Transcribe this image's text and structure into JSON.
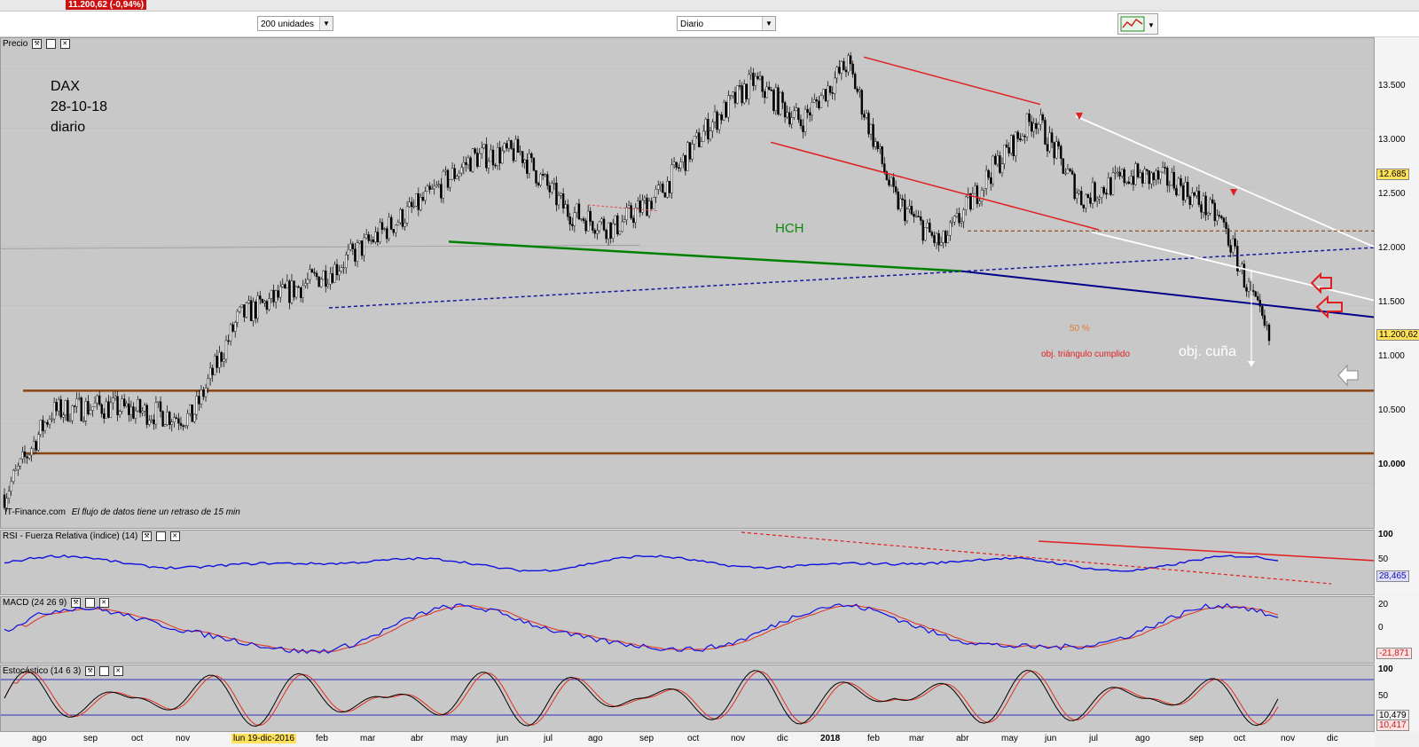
{
  "header": {
    "quote_text": "11.200,62 (-0,94%)",
    "units_select": "200 unidades",
    "period_select": "Diario"
  },
  "price_panel": {
    "title": "Precio",
    "annotation_lines": [
      "DAX",
      "28-10-18",
      "diario"
    ],
    "labels": {
      "hch": "HCH",
      "fifty_pct": "50 %",
      "obj_triangle": "obj. triángulo cumplido",
      "obj_wedge": "obj. cuña"
    },
    "source_text": "IT-Finance.com",
    "delay_text": "El flujo de datos tiene un retraso de 15 min",
    "y_ticks": [
      "13.500",
      "13.000",
      "12.500",
      "12.000",
      "11.500",
      "11.000",
      "10.500",
      "10.000"
    ],
    "price_tags": [
      "12.685",
      "11.200,62"
    ]
  },
  "rsi_panel": {
    "title": "RSI - Fuerza Relativa (índice) (14)",
    "y_ticks": [
      "100",
      "50"
    ],
    "value_tag": "28,465"
  },
  "macd_panel": {
    "title": "MACD (24 26 9)",
    "y_ticks": [
      "20",
      "0"
    ],
    "value_tag": "-21,871"
  },
  "stoch_panel": {
    "title": "Estocástico (14 6 3)",
    "y_ticks": [
      "100",
      "50"
    ],
    "value_tags": [
      "10,479",
      "10,417"
    ]
  },
  "x_axis": {
    "labels": [
      "ago",
      "sep",
      "oct",
      "nov",
      "lun 19-dic-2016",
      "feb",
      "mar",
      "abr",
      "may",
      "jun",
      "jul",
      "ago",
      "sep",
      "oct",
      "nov",
      "dic",
      "2018",
      "feb",
      "mar",
      "abr",
      "may",
      "jun",
      "jul",
      "ago",
      "sep",
      "oct",
      "nov",
      "dic"
    ]
  },
  "chart_data": {
    "type": "line",
    "title": "DAX 28-10-18 diario",
    "ylim": [
      9800,
      13700
    ],
    "y_ticks": [
      13500,
      13000,
      12500,
      12000,
      11500,
      11000,
      10500,
      10000
    ],
    "series": [
      {
        "name": "",
        "x": [
          "2016-07",
          "2016-08",
          "2016-09",
          "2016-10",
          "2016-11",
          "2016-12",
          "2017-01",
          "2017-02",
          "2017-03",
          "2017-04",
          "2017-05",
          "2017-06",
          "2017-07",
          "2017-08",
          "2017-09",
          "2017-10",
          "2017-11",
          "2017-12",
          "2018-01",
          "2018-02",
          "2018-03",
          "2018-04",
          "2018-05",
          "2018-06",
          "2018-07",
          "2018-08",
          "2018-09",
          "2018-10"
        ],
        "values": [
          9900,
          10600,
          10650,
          10600,
          10550,
          11400,
          11600,
          11800,
          12100,
          12400,
          12750,
          12800,
          12300,
          12150,
          12450,
          13000,
          13400,
          13050,
          13550,
          12400,
          12000,
          12600,
          13100,
          12400,
          12600,
          12550,
          12200,
          11200
        ]
      }
    ],
    "colors": {
      "support": "#8b4513",
      "hch_neckline": "#008000",
      "trend_red": "#e02020",
      "trend_blue": "#00008b",
      "wedge": "#ffffff",
      "rsi": "#1010e0",
      "macd": "#1010e0",
      "signal": "#e03020"
    }
  }
}
